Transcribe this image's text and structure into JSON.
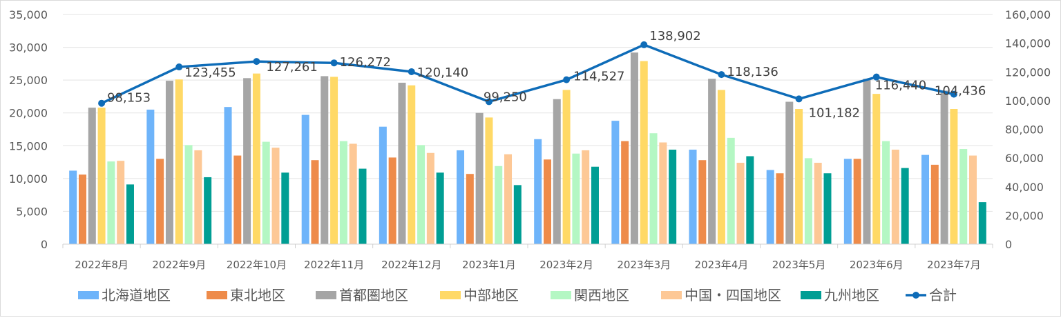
{
  "chart_data": {
    "type": "bar",
    "title": "",
    "xlabel": "",
    "ylabel": "",
    "categories": [
      "2022年8月",
      "2022年9月",
      "2022年10月",
      "2022年11月",
      "2022年12月",
      "2023年1月",
      "2023年2月",
      "2023年3月",
      "2023年4月",
      "2023年5月",
      "2023年6月",
      "2023年7月"
    ],
    "ylim": [
      0,
      35000
    ],
    "y_ticks": [
      "0",
      "5,000",
      "10,000",
      "15,000",
      "20,000",
      "25,000",
      "30,000",
      "35,000"
    ],
    "y2lim": [
      0,
      160000
    ],
    "y2_ticks": [
      "0",
      "20,000",
      "40,000",
      "60,000",
      "80,000",
      "100,000",
      "120,000",
      "140,000",
      "160,000"
    ],
    "grid": true,
    "legend_position": "bottom",
    "series": [
      {
        "name": "北海道地区",
        "type": "bar",
        "axis": "left",
        "color": "#6eb4fa",
        "values": [
          11200,
          20500,
          20900,
          19700,
          17900,
          14300,
          16000,
          18800,
          14400,
          11300,
          13000,
          13600
        ]
      },
      {
        "name": "東北地区",
        "type": "bar",
        "axis": "left",
        "color": "#ee8b4a",
        "values": [
          10600,
          13000,
          13500,
          12800,
          13200,
          10700,
          12900,
          15700,
          12800,
          10800,
          13000,
          12100
        ]
      },
      {
        "name": "首都圏地区",
        "type": "bar",
        "axis": "left",
        "color": "#a5a5a5",
        "values": [
          20800,
          24900,
          25300,
          25600,
          24600,
          20000,
          22100,
          29200,
          25200,
          21700,
          25200,
          23400
        ]
      },
      {
        "name": "中部地区",
        "type": "bar",
        "axis": "left",
        "color": "#ffd966",
        "values": [
          20800,
          25100,
          26000,
          25500,
          24200,
          19300,
          23500,
          27900,
          23500,
          20600,
          22900,
          20600
        ]
      },
      {
        "name": "関西地区",
        "type": "bar",
        "axis": "left",
        "color": "#b4f7c3",
        "values": [
          12600,
          15100,
          15600,
          15700,
          15100,
          11900,
          13800,
          16900,
          16200,
          13100,
          15700,
          14500
        ]
      },
      {
        "name": "中国・四国地区",
        "type": "bar",
        "axis": "left",
        "color": "#fdc896",
        "values": [
          12700,
          14300,
          14700,
          15300,
          13900,
          13700,
          14300,
          15500,
          12400,
          12400,
          14400,
          13500
        ]
      },
      {
        "name": "九州地区",
        "type": "bar",
        "axis": "left",
        "color": "#009e94",
        "values": [
          9100,
          10200,
          10900,
          11500,
          10900,
          9000,
          11800,
          14400,
          13400,
          10800,
          11600,
          6400
        ]
      },
      {
        "name": "合計",
        "type": "line",
        "axis": "right",
        "color": "#0e6cb8",
        "values": [
          98153,
          123455,
          127261,
          126272,
          120140,
          99250,
          114527,
          138902,
          118136,
          101182,
          116440,
          104436
        ]
      }
    ],
    "data_labels": [
      "98,153",
      "123,455",
      "127,261",
      "126,272",
      "120,140",
      "99,250",
      "114,527",
      "138,902",
      "118,136",
      "101,182",
      "116,440",
      "104,436"
    ]
  },
  "legend": [
    {
      "label": "北海道地区",
      "color": "#6eb4fa",
      "kind": "box"
    },
    {
      "label": "東北地区",
      "color": "#ee8b4a",
      "kind": "box"
    },
    {
      "label": "首都圏地区",
      "color": "#a5a5a5",
      "kind": "box"
    },
    {
      "label": "中部地区",
      "color": "#ffd966",
      "kind": "box"
    },
    {
      "label": "関西地区",
      "color": "#b4f7c3",
      "kind": "box"
    },
    {
      "label": "中国・四国地区",
      "color": "#fdc896",
      "kind": "box"
    },
    {
      "label": "九州地区",
      "color": "#009e94",
      "kind": "box"
    },
    {
      "label": "合計",
      "color": "#0e6cb8",
      "kind": "line"
    }
  ]
}
